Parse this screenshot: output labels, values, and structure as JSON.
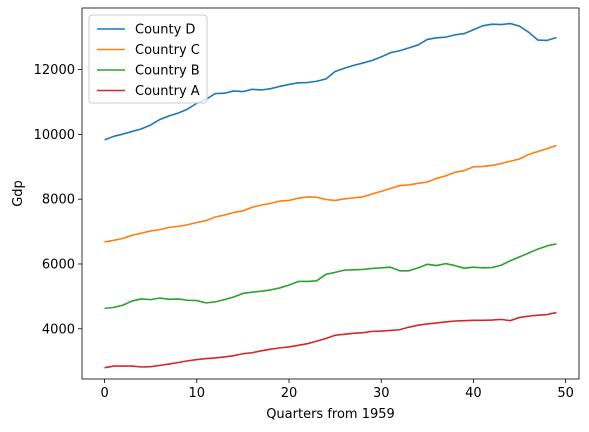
{
  "chart_data": {
    "type": "line",
    "title": "",
    "xlabel": "Quarters from 1959",
    "ylabel": "Gdp",
    "xlim": [
      -2.45,
      51.45
    ],
    "ylim": [
      2450,
      13900
    ],
    "xticks": [
      0,
      10,
      20,
      30,
      40,
      50
    ],
    "yticks": [
      4000,
      6000,
      8000,
      10000,
      12000
    ],
    "grid": false,
    "legend_position": "top-left",
    "x": [
      0,
      1,
      2,
      3,
      4,
      5,
      6,
      7,
      8,
      9,
      10,
      11,
      12,
      13,
      14,
      15,
      16,
      17,
      18,
      19,
      20,
      21,
      22,
      23,
      24,
      25,
      26,
      27,
      28,
      29,
      30,
      31,
      32,
      33,
      34,
      35,
      36,
      37,
      38,
      39,
      40,
      41,
      42,
      43,
      44,
      45,
      46,
      47,
      48,
      49
    ],
    "series": [
      {
        "name": "County D",
        "color": "#1f77b4",
        "values": [
          9830,
          9940,
          10010,
          10090,
          10170,
          10290,
          10460,
          10570,
          10660,
          10780,
          10960,
          11080,
          11260,
          11270,
          11340,
          11320,
          11390,
          11370,
          11410,
          11480,
          11540,
          11590,
          11600,
          11640,
          11710,
          11940,
          12040,
          12130,
          12200,
          12280,
          12390,
          12520,
          12580,
          12670,
          12760,
          12930,
          12980,
          13000,
          13070,
          13110,
          13230,
          13350,
          13400,
          13390,
          13420,
          13340,
          13150,
          12910,
          12900,
          12990
        ]
      },
      {
        "name": "Country C",
        "color": "#ff7f0e",
        "values": [
          6680,
          6730,
          6790,
          6890,
          6950,
          7020,
          7060,
          7130,
          7160,
          7210,
          7280,
          7340,
          7450,
          7510,
          7590,
          7640,
          7750,
          7820,
          7870,
          7940,
          7960,
          8030,
          8070,
          8060,
          7990,
          7960,
          8010,
          8040,
          8070,
          8160,
          8240,
          8330,
          8420,
          8440,
          8490,
          8530,
          8640,
          8720,
          8830,
          8880,
          9000,
          9010,
          9040,
          9100,
          9170,
          9240,
          9380,
          9470,
          9560,
          9660
        ]
      },
      {
        "name": "Country B",
        "color": "#2ca02c",
        "values": [
          4630,
          4660,
          4730,
          4860,
          4920,
          4900,
          4950,
          4910,
          4920,
          4880,
          4870,
          4800,
          4830,
          4900,
          4980,
          5090,
          5130,
          5160,
          5200,
          5260,
          5350,
          5460,
          5460,
          5480,
          5680,
          5740,
          5810,
          5820,
          5830,
          5860,
          5880,
          5900,
          5790,
          5790,
          5880,
          5990,
          5950,
          6010,
          5950,
          5870,
          5900,
          5880,
          5890,
          5960,
          6100,
          6220,
          6340,
          6460,
          6560,
          6620
        ]
      },
      {
        "name": "Country A",
        "color": "#d62728",
        "values": [
          2800,
          2850,
          2850,
          2850,
          2820,
          2830,
          2870,
          2910,
          2960,
          3010,
          3050,
          3080,
          3100,
          3130,
          3170,
          3230,
          3260,
          3320,
          3370,
          3410,
          3440,
          3490,
          3540,
          3620,
          3700,
          3800,
          3830,
          3860,
          3880,
          3920,
          3930,
          3950,
          3970,
          4050,
          4110,
          4150,
          4180,
          4210,
          4240,
          4250,
          4260,
          4260,
          4270,
          4290,
          4250,
          4350,
          4390,
          4420,
          4440,
          4500
        ]
      }
    ]
  }
}
